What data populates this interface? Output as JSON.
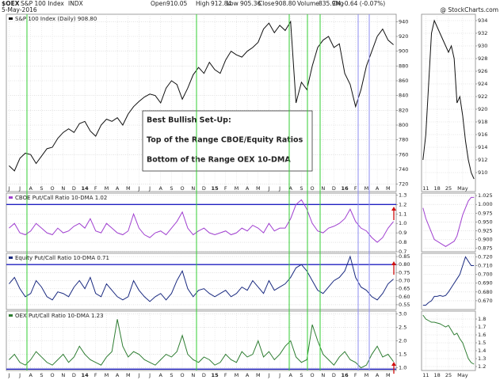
{
  "header": {
    "symbol": "$OEX",
    "name": "S&P 100 Index",
    "exchange": "INDX",
    "date": "5-May-2016",
    "source": "@ StockCharts.com",
    "quote": [
      {
        "label": "Open",
        "value": "910.05"
      },
      {
        "label": "High",
        "value": "912.84"
      },
      {
        "label": "Low",
        "value": "905.36"
      },
      {
        "label": "Close",
        "value": "908.80"
      },
      {
        "label": "Volume",
        "value": "835.9M"
      },
      {
        "label": "Chg",
        "value": "-0.64 (-0.07%)"
      }
    ]
  },
  "chart_data": [
    {
      "type": "line",
      "title": "S&P 100 Index (Daily) 908.80",
      "color": "#111111",
      "grid": true,
      "annotations": [
        "Best Bullish Set-Up:",
        "Top of the Range CBOE/Equity Ratios",
        "Bottom of the Range OEX 10-DMA"
      ],
      "categories": [
        "J",
        null,
        "J",
        null,
        "A",
        null,
        "S",
        null,
        "O",
        null,
        "N",
        null,
        "D",
        null,
        "14",
        null,
        "F",
        null,
        "M",
        null,
        "A",
        null,
        "M",
        null,
        "J",
        null,
        "J",
        null,
        "A",
        null,
        "S",
        null,
        "O",
        null,
        "N",
        null,
        "D",
        null,
        "15",
        null,
        "F",
        null,
        "M",
        null,
        "A",
        null,
        "M",
        null,
        "J",
        null,
        "J",
        null,
        "A",
        null,
        "S",
        null,
        "O",
        null,
        "N",
        null,
        "D",
        null,
        "16",
        null,
        "F",
        null,
        "M",
        null,
        "A",
        null,
        "M",
        null
      ],
      "values": [
        745,
        738,
        755,
        762,
        760,
        748,
        758,
        768,
        770,
        782,
        790,
        795,
        790,
        802,
        805,
        792,
        785,
        800,
        808,
        805,
        810,
        800,
        815,
        825,
        832,
        838,
        842,
        840,
        830,
        850,
        860,
        855,
        835,
        850,
        868,
        878,
        870,
        885,
        875,
        870,
        888,
        900,
        895,
        892,
        900,
        905,
        912,
        930,
        938,
        925,
        935,
        928,
        940,
        830,
        858,
        848,
        880,
        905,
        915,
        920,
        905,
        910,
        870,
        855,
        825,
        848,
        880,
        900,
        920,
        930,
        915,
        908.8
      ],
      "ylim": [
        710,
        950
      ],
      "yticks": [
        720,
        740,
        760,
        780,
        800,
        820,
        840,
        860,
        880,
        900,
        920,
        940
      ]
    },
    {
      "type": "line",
      "title": "CBOE Put/Call Ratio 10-DMA 1.02",
      "color": "#a040d0",
      "grid": true,
      "hline": 1.2,
      "values": [
        0.95,
        1.0,
        0.9,
        0.88,
        0.92,
        1.0,
        0.95,
        0.9,
        0.88,
        0.95,
        0.9,
        0.92,
        0.97,
        1.0,
        0.95,
        1.05,
        0.92,
        0.9,
        1.0,
        0.95,
        0.9,
        0.88,
        0.92,
        1.1,
        0.95,
        0.88,
        0.85,
        0.9,
        0.92,
        0.88,
        0.95,
        1.02,
        1.12,
        0.95,
        0.88,
        0.92,
        0.95,
        0.9,
        0.88,
        0.9,
        0.92,
        0.88,
        0.9,
        0.95,
        0.92,
        0.98,
        0.95,
        0.9,
        1.0,
        0.92,
        0.95,
        0.95,
        1.05,
        1.2,
        1.25,
        1.15,
        1.0,
        0.92,
        0.9,
        0.95,
        0.97,
        1.0,
        1.05,
        1.15,
        1.02,
        0.95,
        0.92,
        0.85,
        0.8,
        0.85,
        0.95,
        1.02
      ],
      "ylim": [
        0.7,
        1.32
      ],
      "yticks": [
        0.7,
        0.8,
        0.9,
        {
          "value": 1,
          "label": "1.0"
        },
        1.1,
        1.2,
        1.3
      ]
    },
    {
      "type": "line",
      "title": "Equity Put/Call Ratio 10-DMA 0.71",
      "color": "#1a2a80",
      "grid": true,
      "hline": 0.8,
      "values": [
        0.68,
        0.72,
        0.65,
        0.6,
        0.62,
        0.7,
        0.66,
        0.6,
        0.58,
        0.63,
        0.62,
        0.6,
        0.66,
        0.7,
        0.65,
        0.72,
        0.62,
        0.6,
        0.68,
        0.64,
        0.6,
        0.58,
        0.6,
        0.7,
        0.64,
        0.6,
        0.57,
        0.6,
        0.62,
        0.58,
        0.62,
        0.7,
        0.76,
        0.65,
        0.6,
        0.64,
        0.65,
        0.62,
        0.6,
        0.62,
        0.64,
        0.6,
        0.62,
        0.66,
        0.64,
        0.7,
        0.66,
        0.62,
        0.7,
        0.64,
        0.66,
        0.68,
        0.72,
        0.78,
        0.8,
        0.76,
        0.7,
        0.64,
        0.62,
        0.66,
        0.7,
        0.72,
        0.76,
        0.85,
        0.72,
        0.66,
        0.64,
        0.6,
        0.58,
        0.62,
        0.68,
        0.71
      ],
      "ylim": [
        0.52,
        0.87
      ],
      "yticks": [
        0.55,
        {
          "value": 0.6,
          "label": "0.60"
        },
        0.65,
        {
          "value": 0.7,
          "label": "0.70"
        },
        0.75,
        {
          "value": 0.8,
          "label": "0.80"
        },
        0.85
      ]
    },
    {
      "type": "line",
      "title": "OEX Put/Call Ratio 10-DMA 1.23",
      "color": "#2e7d32",
      "grid": true,
      "hline": 0.95,
      "categories": [
        "J",
        null,
        "J",
        null,
        "A",
        null,
        "S",
        null,
        "O",
        null,
        "N",
        null,
        "D",
        null,
        "14",
        null,
        "F",
        null,
        "M",
        null,
        "A",
        null,
        "M",
        null,
        "J",
        null,
        "J",
        null,
        "A",
        null,
        "S",
        null,
        "O",
        null,
        "N",
        null,
        "D",
        null,
        "15",
        null,
        "F",
        null,
        "M",
        null,
        "A",
        null,
        "M",
        null,
        "J",
        null,
        "J",
        null,
        "A",
        null,
        "S",
        null,
        "O",
        null,
        "N",
        null,
        "D",
        null,
        "16",
        null,
        "F",
        null,
        "M",
        null,
        "A",
        null,
        "M",
        null
      ],
      "values": [
        1.3,
        1.5,
        1.2,
        1.1,
        1.3,
        1.6,
        1.4,
        1.2,
        1.1,
        1.3,
        1.5,
        1.2,
        1.4,
        1.8,
        1.5,
        1.3,
        1.2,
        1.1,
        1.4,
        1.6,
        2.8,
        1.8,
        1.4,
        1.6,
        1.5,
        1.3,
        1.2,
        1.1,
        1.3,
        1.5,
        1.4,
        1.6,
        2.2,
        1.5,
        1.3,
        1.2,
        1.4,
        1.3,
        1.1,
        1.2,
        1.5,
        1.3,
        1.2,
        1.6,
        1.4,
        1.5,
        2.0,
        1.4,
        1.6,
        1.3,
        1.5,
        1.8,
        2.0,
        1.4,
        1.2,
        1.3,
        2.6,
        2.0,
        1.5,
        1.3,
        1.1,
        1.4,
        1.6,
        1.3,
        1.2,
        1.0,
        1.1,
        1.5,
        1.8,
        1.4,
        1.5,
        1.23
      ],
      "ylim": [
        0.9,
        3.1
      ],
      "yticks": [
        {
          "value": 1,
          "label": "1.0"
        },
        1.5,
        {
          "value": 2,
          "label": "2.0"
        },
        2.5,
        {
          "value": 3,
          "label": "3.0"
        }
      ]
    },
    {
      "type": "line",
      "color": "#111111",
      "grid": true,
      "categories": [
        null,
        "11",
        null,
        null,
        null,
        "18",
        null,
        null,
        null,
        "25",
        null,
        null,
        null,
        null,
        "May",
        null,
        null,
        null,
        null
      ],
      "values": [
        912,
        916,
        924,
        932,
        934,
        933,
        932,
        931,
        930,
        929,
        930,
        928,
        921,
        922,
        919,
        915,
        912,
        910,
        909
      ],
      "ylim": [
        907,
        935
      ],
      "yticks": [
        910,
        912,
        914,
        916,
        918,
        920,
        922,
        924,
        926,
        928,
        930,
        932,
        934
      ]
    },
    {
      "type": "line",
      "color": "#a040d0",
      "grid": true,
      "values": [
        0.99,
        0.96,
        0.94,
        0.92,
        0.9,
        0.895,
        0.89,
        0.885,
        0.88,
        0.885,
        0.89,
        0.895,
        0.91,
        0.94,
        0.97,
        0.99,
        1.01,
        1.02,
        1.02
      ],
      "ylim": [
        0.865,
        1.032
      ],
      "yticks": [
        0.875,
        {
          "value": 0.9,
          "label": "0.900"
        },
        0.925,
        {
          "value": 0.95,
          "label": "0.950"
        },
        0.975,
        {
          "value": 1,
          "label": "1.000"
        },
        1.025
      ]
    },
    {
      "type": "line",
      "color": "#1a2a80",
      "grid": true,
      "values": [
        0.665,
        0.665,
        0.668,
        0.67,
        0.675,
        0.675,
        0.676,
        0.675,
        0.676,
        0.68,
        0.685,
        0.69,
        0.695,
        0.7,
        0.71,
        0.72,
        0.715,
        0.71,
        0.71
      ],
      "ylim": [
        0.66,
        0.724
      ],
      "yticks": [
        {
          "value": 0.67,
          "label": "0.670"
        },
        {
          "value": 0.68,
          "label": "0.680"
        },
        {
          "value": 0.69,
          "label": "0.690"
        },
        {
          "value": 0.7,
          "label": "0.700"
        },
        {
          "value": 0.71,
          "label": "0.710"
        },
        {
          "value": 0.72,
          "label": "0.720"
        }
      ]
    },
    {
      "type": "line",
      "color": "#2e7d32",
      "grid": true,
      "categories": [
        null,
        "11",
        null,
        null,
        null,
        "18",
        null,
        null,
        null,
        "25",
        null,
        null,
        null,
        null,
        "May",
        null,
        null,
        null,
        null
      ],
      "values": [
        1.85,
        1.8,
        1.78,
        1.76,
        1.76,
        1.75,
        1.74,
        1.72,
        1.7,
        1.72,
        1.66,
        1.6,
        1.62,
        1.55,
        1.5,
        1.4,
        1.3,
        1.25,
        1.23
      ],
      "ylim": [
        1.15,
        1.9
      ],
      "yticks": [
        1.2,
        1.3,
        1.4,
        1.5,
        1.6,
        1.7,
        1.8
      ]
    }
  ]
}
